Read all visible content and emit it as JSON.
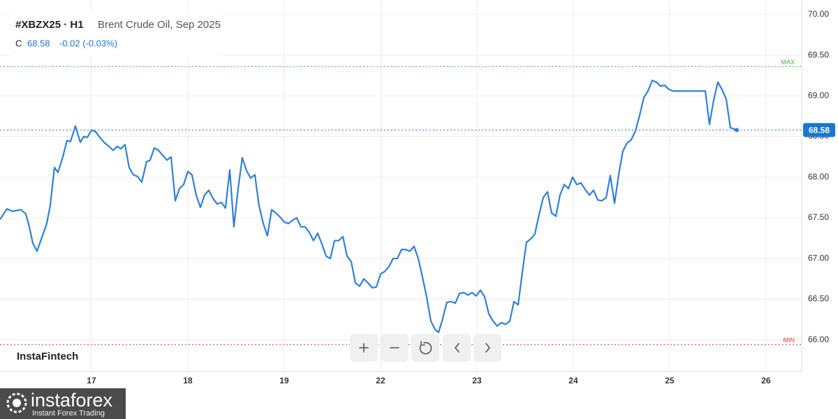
{
  "chart_data": {
    "type": "line",
    "symbol": "#XBZX25 · H1",
    "title": "Brent Crude Oil, Sep 2025",
    "close_prefix": "C",
    "change_label": "-0.02 (-0.03%)",
    "watermark": "InstaFintech",
    "x": [
      -0.949,
      -0.877,
      -0.819,
      -0.732,
      -0.681,
      -0.645,
      -0.609,
      -0.565,
      -0.514,
      -0.464,
      -0.428,
      -0.384,
      -0.348,
      -0.297,
      -0.254,
      -0.217,
      -0.167,
      -0.116,
      -0.08,
      -0.043,
      0,
      0.043,
      0.087,
      0.138,
      0.181,
      0.225,
      0.268,
      0.304,
      0.348,
      0.391,
      0.435,
      0.478,
      0.522,
      0.572,
      0.609,
      0.652,
      0.696,
      0.739,
      0.783,
      0.826,
      0.87,
      0.913,
      0.957,
      1.0,
      1.043,
      1.087,
      1.13,
      1.174,
      1.217,
      1.261,
      1.304,
      1.348,
      1.391,
      1.435,
      1.478,
      1.522,
      1.565,
      1.609,
      1.652,
      1.696,
      1.739,
      1.783,
      1.826,
      1.87,
      1.913,
      1.957,
      2.0,
      2.043,
      2.087,
      2.13,
      2.174,
      2.217,
      2.261,
      2.304,
      2.348,
      2.391,
      2.435,
      2.478,
      2.522,
      2.565,
      2.609,
      2.652,
      2.696,
      2.739,
      2.783,
      2.826,
      2.87,
      2.913,
      2.957,
      3.0,
      3.043,
      3.087,
      3.13,
      3.174,
      3.217,
      3.261,
      3.304,
      3.348,
      3.391,
      3.435,
      3.478,
      3.522,
      3.565,
      3.601,
      3.638,
      3.688,
      3.732,
      3.775,
      3.819,
      3.862,
      3.906,
      3.949,
      3.993,
      4.036,
      4.08,
      4.123,
      4.167,
      4.21,
      4.254,
      4.297,
      4.341,
      4.384,
      4.428,
      4.471,
      4.514,
      4.558,
      4.601,
      4.645,
      4.688,
      4.732,
      4.775,
      4.819,
      4.862,
      4.906,
      4.949,
      4.993,
      5.036,
      5.08,
      5.123,
      5.167,
      5.21,
      5.254,
      5.297,
      5.341,
      5.384,
      5.428,
      5.471,
      5.514,
      5.558,
      5.601,
      5.645,
      5.688,
      5.732,
      5.775,
      5.819,
      5.862,
      5.906,
      5.949,
      5.993,
      6.036,
      6.08,
      6.37,
      6.413,
      6.457,
      6.5,
      6.543,
      6.587,
      6.63,
      6.696
    ],
    "series": [
      {
        "color": "#2f80d8",
        "values": [
          67.48,
          67.61,
          67.58,
          67.6,
          67.55,
          67.39,
          67.19,
          67.09,
          67.26,
          67.43,
          67.65,
          68.12,
          68.06,
          68.25,
          68.45,
          68.44,
          68.63,
          68.43,
          68.5,
          68.49,
          68.58,
          68.56,
          68.49,
          68.42,
          68.38,
          68.33,
          68.38,
          68.35,
          68.4,
          68.12,
          68.03,
          68.01,
          67.94,
          68.19,
          68.21,
          68.36,
          68.33,
          68.27,
          68.21,
          68.25,
          67.71,
          67.86,
          67.91,
          68.07,
          68.03,
          67.78,
          67.63,
          67.78,
          67.84,
          67.74,
          67.67,
          67.69,
          67.62,
          68.09,
          67.39,
          67.86,
          68.24,
          68.08,
          67.99,
          68.03,
          67.65,
          67.43,
          67.28,
          67.6,
          67.56,
          67.51,
          67.45,
          67.43,
          67.47,
          67.5,
          67.39,
          67.39,
          67.32,
          67.22,
          67.31,
          67.18,
          67.03,
          67.0,
          67.22,
          67.22,
          67.27,
          67.03,
          66.96,
          66.7,
          66.66,
          66.75,
          66.7,
          66.64,
          66.65,
          66.81,
          66.84,
          66.9,
          67.0,
          67.0,
          67.11,
          67.11,
          67.09,
          67.15,
          67.0,
          66.77,
          66.53,
          66.23,
          66.13,
          66.09,
          66.23,
          66.46,
          66.47,
          66.45,
          66.57,
          66.58,
          66.55,
          66.58,
          66.54,
          66.61,
          66.53,
          66.32,
          66.23,
          66.17,
          66.21,
          66.19,
          66.23,
          66.47,
          66.43,
          66.83,
          67.2,
          67.24,
          67.3,
          67.54,
          67.75,
          67.82,
          67.56,
          67.52,
          67.78,
          67.91,
          67.86,
          68.0,
          67.91,
          67.93,
          67.85,
          67.78,
          67.84,
          67.72,
          67.71,
          67.75,
          68.02,
          67.68,
          68.03,
          68.32,
          68.42,
          68.46,
          68.57,
          68.76,
          68.98,
          69.06,
          69.19,
          69.17,
          69.12,
          69.13,
          69.08,
          69.06,
          69.06,
          69.06,
          68.65,
          68.95,
          69.17,
          69.08,
          68.96,
          68.61,
          68.58
        ]
      }
    ],
    "xlim": [
      -0.949,
      7.37
    ],
    "xticks": [
      {
        "value": 0,
        "label": "17"
      },
      {
        "value": 1,
        "label": "18"
      },
      {
        "value": 2,
        "label": "19"
      },
      {
        "value": 3,
        "label": "22"
      },
      {
        "value": 4,
        "label": "23"
      },
      {
        "value": 5,
        "label": "24"
      },
      {
        "value": 6,
        "label": "25"
      },
      {
        "value": 7,
        "label": "26"
      }
    ],
    "ylim": [
      65.61,
      70.18
    ],
    "yticks": [
      {
        "value": 66,
        "label": "66.00"
      },
      {
        "value": 66.5,
        "label": "66.50"
      },
      {
        "value": 67,
        "label": "67.00"
      },
      {
        "value": 67.5,
        "label": "67.50"
      },
      {
        "value": 68,
        "label": "68.00"
      },
      {
        "value": 68.5,
        "label": "68.50"
      },
      {
        "value": 69,
        "label": "69.00"
      },
      {
        "value": 69.5,
        "label": "69.50"
      },
      {
        "value": 70,
        "label": "70.00"
      }
    ],
    "grid": true,
    "current_color": "#1976d2",
    "reference_lines": [
      {
        "label": "MAX",
        "value": 69.36,
        "color": "#4caf50"
      },
      {
        "label": "MIN",
        "value": 65.94,
        "color": "#e53935"
      }
    ]
  },
  "logo": {
    "brand": "instaforex",
    "tagline": "Instant Forex Trading"
  }
}
